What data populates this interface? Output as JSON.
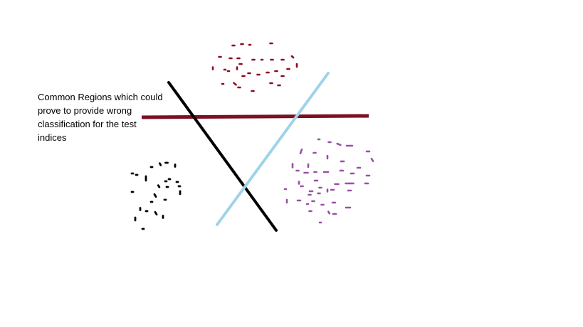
{
  "annotation": {
    "text": "Common Regions which could\nprove to provide wrong\nclassification for the test\nindices"
  },
  "colors": {
    "background": "#ffffff",
    "text": "#000000",
    "cluster_top": "#8b0a1e",
    "cluster_left": "#000000",
    "cluster_right": "#9b4fa8",
    "line_horizontal": "#7a1024",
    "line_diagonal_down": "#000000",
    "line_diagonal_up": "#9fd4e8"
  },
  "shapes": {
    "clusters": [
      {
        "name": "cluster-top-dots",
        "color_key": "cluster_top",
        "mark": "short dashes"
      },
      {
        "name": "cluster-left-dots",
        "color_key": "cluster_left",
        "mark": "dots"
      },
      {
        "name": "cluster-right-dots",
        "color_key": "cluster_right",
        "mark": "dashes"
      }
    ],
    "lines": [
      {
        "name": "separator-line-horizontal",
        "color_key": "line_horizontal"
      },
      {
        "name": "separator-line-diagonal-down",
        "color_key": "line_diagonal_down"
      },
      {
        "name": "separator-line-diagonal-up",
        "color_key": "line_diagonal_up"
      }
    ]
  }
}
